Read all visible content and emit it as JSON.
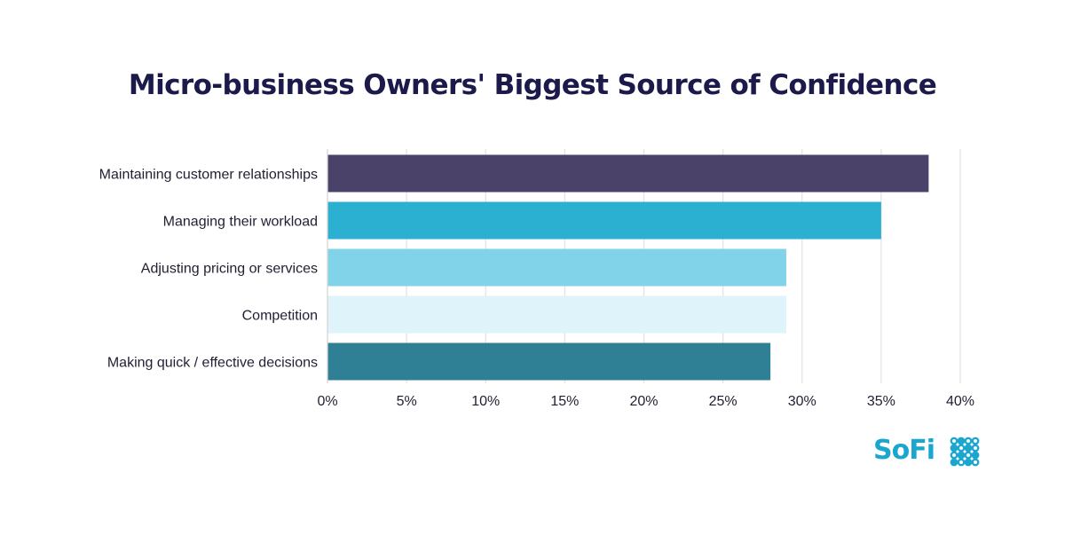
{
  "chart_data": {
    "type": "bar",
    "orientation": "horizontal",
    "title": "Micro-business Owners' Biggest Source of Confidence",
    "categories": [
      "Maintaining customer relationships",
      "Managing their workload",
      "Adjusting pricing or services",
      "Competition",
      "Making quick / effective decisions"
    ],
    "values": [
      38,
      35,
      29,
      29,
      28
    ],
    "colors": [
      "#4a4268",
      "#2bb0d2",
      "#80d3e8",
      "#dff3fb",
      "#2f7f95"
    ],
    "xlim": [
      0,
      40
    ],
    "xticks": [
      0,
      5,
      10,
      15,
      20,
      25,
      30,
      35,
      40
    ],
    "xtick_labels": [
      "0%",
      "5%",
      "10%",
      "15%",
      "20%",
      "25%",
      "30%",
      "35%",
      "40%"
    ],
    "xlabel": "",
    "ylabel": "",
    "grid": true,
    "legend": "none"
  },
  "brand": {
    "logo_text": "SoFi",
    "logo_color": "#1aa6cf"
  }
}
